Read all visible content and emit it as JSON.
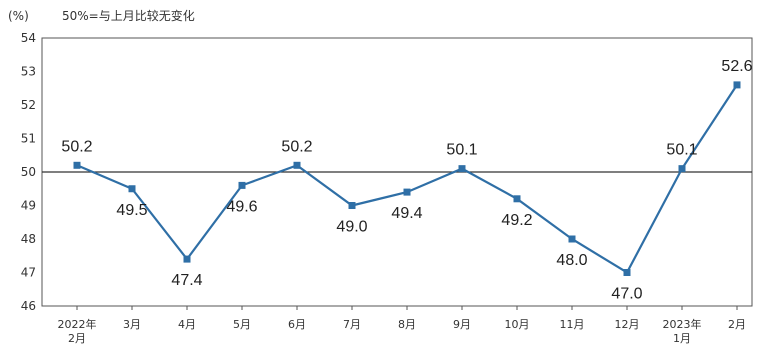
{
  "header": {
    "unit_label": "(%)",
    "note": "50%=与上月比较无变化"
  },
  "colors": {
    "series": "#2f6fa6",
    "reference_line": "#333333",
    "axis": "#555555"
  },
  "chart_data": {
    "type": "line",
    "title": "",
    "xlabel": "",
    "ylabel": "(%)",
    "ylim": [
      46,
      54
    ],
    "yticks": [
      46,
      47,
      48,
      49,
      50,
      51,
      52,
      53,
      54
    ],
    "reference_value": 50,
    "categories": [
      [
        "2022年",
        "2月"
      ],
      [
        "3月"
      ],
      [
        "4月"
      ],
      [
        "5月"
      ],
      [
        "6月"
      ],
      [
        "7月"
      ],
      [
        "8月"
      ],
      [
        "9月"
      ],
      [
        "10月"
      ],
      [
        "11月"
      ],
      [
        "12月"
      ],
      [
        "2023年",
        "1月"
      ],
      [
        "2月"
      ]
    ],
    "series": [
      {
        "values": [
          50.2,
          49.5,
          47.4,
          49.6,
          50.2,
          49.0,
          49.4,
          50.1,
          49.2,
          48.0,
          47.0,
          50.1,
          52.6
        ],
        "labels": [
          "50.2",
          "49.5",
          "47.4",
          "49.6",
          "50.2",
          "49.0",
          "49.4",
          "50.1",
          "49.2",
          "48.0",
          "47.0",
          "50.1",
          "52.6"
        ]
      }
    ],
    "grid": false,
    "legend": "none"
  }
}
